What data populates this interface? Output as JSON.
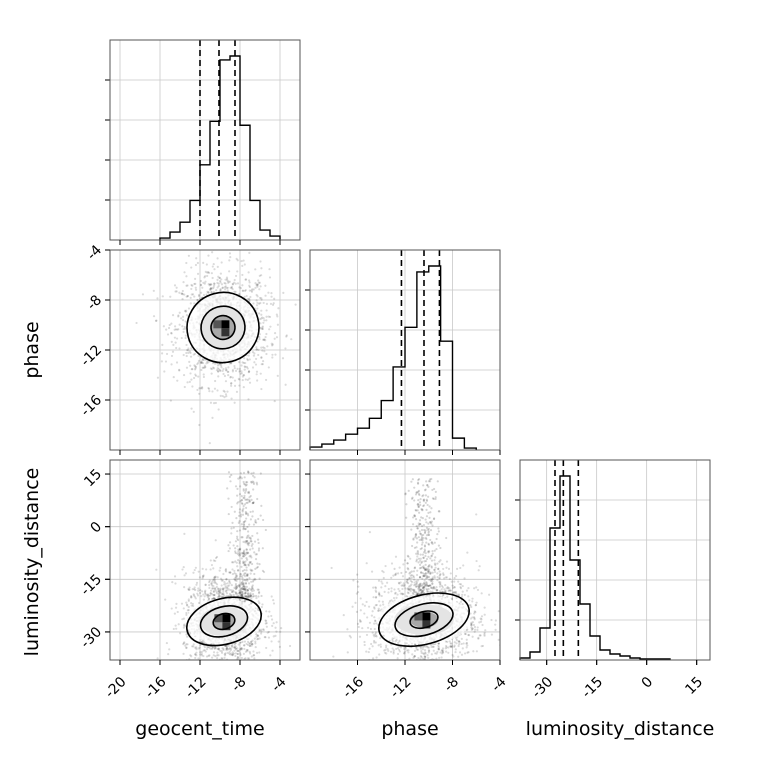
{
  "chart_data": {
    "type": "corner",
    "parameters": [
      "geocent_time",
      "phase",
      "luminosity_distance"
    ],
    "xlabels": [
      "geocent_time",
      "phase",
      "luminosity_distance"
    ],
    "ylabels": [
      "",
      "phase",
      "luminosity_distance"
    ],
    "ranges": {
      "geocent_time": [
        -21,
        -2
      ],
      "phase": [
        -20,
        -4
      ],
      "luminosity_distance": [
        -38,
        19
      ]
    },
    "ticks": {
      "geocent_time": [
        -20,
        -16,
        -12,
        -8,
        -4
      ],
      "phase": [
        -16,
        -12,
        -8,
        -4
      ],
      "phase_y": [
        -4,
        -8,
        -12,
        -16
      ],
      "luminosity_distance": [
        -30,
        -15,
        0,
        15
      ],
      "luminosity_distance_y": [
        15,
        0,
        -15,
        -30
      ]
    },
    "grid": true,
    "histograms": {
      "geocent_time": {
        "bin_edges": [
          -16,
          -15,
          -14,
          -13,
          -12,
          -11,
          -10,
          -9,
          -8,
          -7,
          -6,
          -5,
          -4
        ],
        "counts": [
          0.01,
          0.04,
          0.09,
          0.2,
          0.38,
          0.6,
          0.91,
          0.93,
          0.58,
          0.2,
          0.05,
          0.02
        ],
        "quantiles": [
          -12,
          -10.1,
          -8.5
        ]
      },
      "phase": {
        "bin_edges": [
          -20,
          -19,
          -18,
          -17,
          -16,
          -15,
          -14,
          -13,
          -12,
          -11,
          -10,
          -9,
          -8,
          -7,
          -6
        ],
        "counts": [
          0.015,
          0.03,
          0.05,
          0.08,
          0.11,
          0.16,
          0.25,
          0.42,
          0.62,
          0.9,
          0.93,
          0.55,
          0.06,
          0.01
        ],
        "quantiles": [
          -12.3,
          -10.4,
          -9.1
        ]
      },
      "luminosity_distance": {
        "bin_edges": [
          -38,
          -35,
          -32,
          -29,
          -26,
          -23,
          -20,
          -17,
          -14,
          -11,
          -8,
          -5,
          -2,
          1,
          4,
          7
        ],
        "counts": [
          0.01,
          0.04,
          0.16,
          0.66,
          0.92,
          0.5,
          0.28,
          0.12,
          0.05,
          0.03,
          0.02,
          0.01,
          0.005,
          0.005,
          0.005
        ],
        "quantiles": [
          -27.5,
          -25,
          -20.5
        ]
      }
    },
    "contours": {
      "phase_vs_geocent_time": {
        "center": [
          -9.7,
          -10.2
        ],
        "levels": [
          {
            "rx": 3.6,
            "ry": 2.8
          },
          {
            "rx": 2.2,
            "ry": 1.7
          },
          {
            "rx": 1.2,
            "ry": 0.95
          }
        ],
        "scatter_spread": [
          2.3,
          2.3
        ]
      },
      "luminosity_distance_vs_geocent_time": {
        "center": [
          -9.6,
          -27
        ],
        "levels": [
          {
            "rx": 3.8,
            "ry": 6.5
          },
          {
            "rx": 2.4,
            "ry": 4.2
          },
          {
            "rx": 1.1,
            "ry": 2.2
          }
        ],
        "scatter_spread": [
          2.0,
          7.0
        ],
        "tail": {
          "x": -7.5,
          "y_from": -20,
          "y_to": 16
        }
      },
      "luminosity_distance_vs_phase": {
        "center": [
          -10.4,
          -26.5
        ],
        "levels": [
          {
            "rx": 3.9,
            "ry": 7.0
          },
          {
            "rx": 2.5,
            "ry": 4.4
          },
          {
            "rx": 1.2,
            "ry": 2.3
          }
        ],
        "scatter_spread": [
          2.3,
          7.0
        ],
        "tail": {
          "x": -10.5,
          "y_from": -20,
          "y_to": 14
        }
      }
    }
  }
}
